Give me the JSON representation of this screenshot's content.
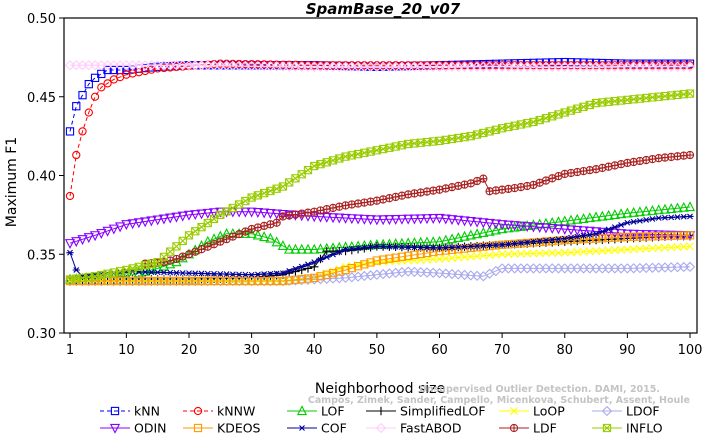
{
  "chart_data": {
    "type": "line",
    "title": "SpamBase_20_v07",
    "xlabel": "Neighborhood size",
    "ylabel": "Maximum F1",
    "xlim": [
      1,
      100
    ],
    "ylim": [
      0.3,
      0.5
    ],
    "xticks": [
      1,
      10,
      20,
      30,
      40,
      50,
      60,
      70,
      80,
      90,
      100
    ],
    "xtick_labels": [
      "1",
      "10",
      "20",
      "30",
      "40",
      "50",
      "60",
      "70",
      "80",
      "90",
      "100"
    ],
    "yticks": [
      0.3,
      0.35,
      0.4,
      0.45,
      0.5
    ],
    "ytick_labels": [
      "0.30",
      "0.35",
      "0.40",
      "0.45",
      "0.50"
    ],
    "grid": false,
    "legend_position": "bottom",
    "watermark": [
      "Campos, Zimek, Sander, Campello, Micenkova, Schubert, Assent, Houle",
      "Unsupervised Outlier Detection. DAMI, 2015."
    ],
    "series": [
      {
        "name": "kNN",
        "color": "#0000ff",
        "marker": "square",
        "dashed": true,
        "points": [
          [
            1,
            0.428
          ],
          [
            2,
            0.444
          ],
          [
            3,
            0.451
          ],
          [
            4,
            0.458
          ],
          [
            5,
            0.462
          ],
          [
            7,
            0.467
          ],
          [
            10,
            0.467
          ],
          [
            15,
            0.469
          ],
          [
            20,
            0.47
          ],
          [
            30,
            0.47
          ],
          [
            40,
            0.47
          ],
          [
            50,
            0.469
          ],
          [
            60,
            0.47
          ],
          [
            70,
            0.471
          ],
          [
            80,
            0.472
          ],
          [
            90,
            0.471
          ],
          [
            100,
            0.471
          ]
        ]
      },
      {
        "name": "kNNW",
        "color": "#ff0000",
        "marker": "circle",
        "dashed": true,
        "points": [
          [
            1,
            0.387
          ],
          [
            2,
            0.413
          ],
          [
            3,
            0.428
          ],
          [
            4,
            0.44
          ],
          [
            5,
            0.45
          ],
          [
            6,
            0.456
          ],
          [
            8,
            0.461
          ],
          [
            10,
            0.464
          ],
          [
            15,
            0.468
          ],
          [
            25,
            0.471
          ],
          [
            40,
            0.47
          ],
          [
            60,
            0.47
          ],
          [
            80,
            0.47
          ],
          [
            100,
            0.47
          ]
        ]
      },
      {
        "name": "LOF",
        "color": "#00cc00",
        "marker": "triangle-up",
        "dashed": false,
        "points": [
          [
            1,
            0.334
          ],
          [
            10,
            0.336
          ],
          [
            15,
            0.341
          ],
          [
            18,
            0.345
          ],
          [
            20,
            0.35
          ],
          [
            23,
            0.358
          ],
          [
            26,
            0.363
          ],
          [
            30,
            0.363
          ],
          [
            33,
            0.36
          ],
          [
            36,
            0.353
          ],
          [
            40,
            0.353
          ],
          [
            50,
            0.356
          ],
          [
            60,
            0.358
          ],
          [
            70,
            0.366
          ],
          [
            80,
            0.371
          ],
          [
            90,
            0.376
          ],
          [
            100,
            0.38
          ]
        ]
      },
      {
        "name": "SimplifiedLOF",
        "color": "#000000",
        "marker": "plus",
        "dashed": false,
        "points": [
          [
            1,
            0.333
          ],
          [
            10,
            0.334
          ],
          [
            20,
            0.334
          ],
          [
            30,
            0.335
          ],
          [
            35,
            0.337
          ],
          [
            40,
            0.342
          ],
          [
            42,
            0.352
          ],
          [
            45,
            0.352
          ],
          [
            50,
            0.355
          ],
          [
            60,
            0.354
          ],
          [
            70,
            0.356
          ],
          [
            80,
            0.358
          ],
          [
            90,
            0.36
          ],
          [
            100,
            0.362
          ]
        ]
      },
      {
        "name": "LoOP",
        "color": "#ffff00",
        "marker": "x",
        "dashed": false,
        "points": [
          [
            1,
            0.333
          ],
          [
            20,
            0.333
          ],
          [
            35,
            0.333
          ],
          [
            40,
            0.335
          ],
          [
            45,
            0.342
          ],
          [
            50,
            0.345
          ],
          [
            60,
            0.347
          ],
          [
            70,
            0.35
          ],
          [
            80,
            0.351
          ],
          [
            90,
            0.353
          ],
          [
            100,
            0.355
          ]
        ]
      },
      {
        "name": "LDOF",
        "color": "#aaaaee",
        "marker": "diamond",
        "dashed": false,
        "points": [
          [
            1,
            0.333
          ],
          [
            20,
            0.333
          ],
          [
            35,
            0.333
          ],
          [
            45,
            0.335
          ],
          [
            50,
            0.337
          ],
          [
            55,
            0.339
          ],
          [
            60,
            0.338
          ],
          [
            67,
            0.336
          ],
          [
            70,
            0.341
          ],
          [
            80,
            0.341
          ],
          [
            90,
            0.341
          ],
          [
            100,
            0.342
          ]
        ]
      },
      {
        "name": "ODIN",
        "color": "#8800ff",
        "marker": "triangle-down",
        "dashed": false,
        "points": [
          [
            1,
            0.357
          ],
          [
            5,
            0.362
          ],
          [
            10,
            0.369
          ],
          [
            15,
            0.372
          ],
          [
            20,
            0.375
          ],
          [
            25,
            0.377
          ],
          [
            30,
            0.377
          ],
          [
            40,
            0.374
          ],
          [
            50,
            0.372
          ],
          [
            60,
            0.373
          ],
          [
            70,
            0.369
          ],
          [
            80,
            0.366
          ],
          [
            90,
            0.363
          ],
          [
            100,
            0.362
          ]
        ]
      },
      {
        "name": "KDEOS",
        "color": "#ff9900",
        "marker": "square",
        "dashed": false,
        "points": [
          [
            1,
            0.333
          ],
          [
            20,
            0.333
          ],
          [
            35,
            0.333
          ],
          [
            40,
            0.335
          ],
          [
            45,
            0.34
          ],
          [
            50,
            0.346
          ],
          [
            60,
            0.352
          ],
          [
            70,
            0.356
          ],
          [
            80,
            0.359
          ],
          [
            90,
            0.361
          ],
          [
            100,
            0.362
          ]
        ]
      },
      {
        "name": "COF",
        "color": "#000099",
        "marker": "asterisk",
        "dashed": false,
        "points": [
          [
            1,
            0.351
          ],
          [
            2,
            0.34
          ],
          [
            3,
            0.336
          ],
          [
            5,
            0.337
          ],
          [
            10,
            0.339
          ],
          [
            20,
            0.338
          ],
          [
            30,
            0.337
          ],
          [
            35,
            0.338
          ],
          [
            40,
            0.345
          ],
          [
            45,
            0.353
          ],
          [
            50,
            0.355
          ],
          [
            60,
            0.354
          ],
          [
            70,
            0.356
          ],
          [
            80,
            0.36
          ],
          [
            85,
            0.363
          ],
          [
            90,
            0.37
          ],
          [
            95,
            0.373
          ],
          [
            100,
            0.374
          ]
        ]
      },
      {
        "name": "FastABOD",
        "color": "#ffccff",
        "marker": "diamond",
        "dashed": false,
        "points": [
          [
            1,
            0.47
          ],
          [
            20,
            0.47
          ],
          [
            40,
            0.469
          ],
          [
            60,
            0.469
          ],
          [
            80,
            0.469
          ],
          [
            100,
            0.469
          ]
        ]
      },
      {
        "name": "LDF",
        "color": "#aa2222",
        "marker": "circle-plus",
        "dashed": false,
        "points": [
          [
            13,
            0.344
          ],
          [
            16,
            0.345
          ],
          [
            18,
            0.347
          ],
          [
            20,
            0.35
          ],
          [
            25,
            0.358
          ],
          [
            30,
            0.366
          ],
          [
            34,
            0.37
          ],
          [
            35,
            0.374
          ],
          [
            40,
            0.377
          ],
          [
            45,
            0.381
          ],
          [
            50,
            0.384
          ],
          [
            55,
            0.388
          ],
          [
            60,
            0.391
          ],
          [
            65,
            0.395
          ],
          [
            67,
            0.398
          ],
          [
            68,
            0.39
          ],
          [
            72,
            0.392
          ],
          [
            75,
            0.394
          ],
          [
            80,
            0.401
          ],
          [
            85,
            0.404
          ],
          [
            90,
            0.408
          ],
          [
            95,
            0.411
          ],
          [
            100,
            0.413
          ]
        ]
      },
      {
        "name": "INFLO",
        "color": "#99cc00",
        "marker": "square-x",
        "dashed": false,
        "points": [
          [
            1,
            0.334
          ],
          [
            5,
            0.336
          ],
          [
            10,
            0.34
          ],
          [
            15,
            0.345
          ],
          [
            18,
            0.355
          ],
          [
            20,
            0.362
          ],
          [
            25,
            0.375
          ],
          [
            30,
            0.386
          ],
          [
            35,
            0.393
          ],
          [
            40,
            0.406
          ],
          [
            45,
            0.412
          ],
          [
            50,
            0.416
          ],
          [
            55,
            0.42
          ],
          [
            60,
            0.422
          ],
          [
            65,
            0.425
          ],
          [
            70,
            0.43
          ],
          [
            75,
            0.434
          ],
          [
            80,
            0.44
          ],
          [
            85,
            0.446
          ],
          [
            90,
            0.448
          ],
          [
            95,
            0.45
          ],
          [
            100,
            0.452
          ]
        ]
      }
    ]
  }
}
